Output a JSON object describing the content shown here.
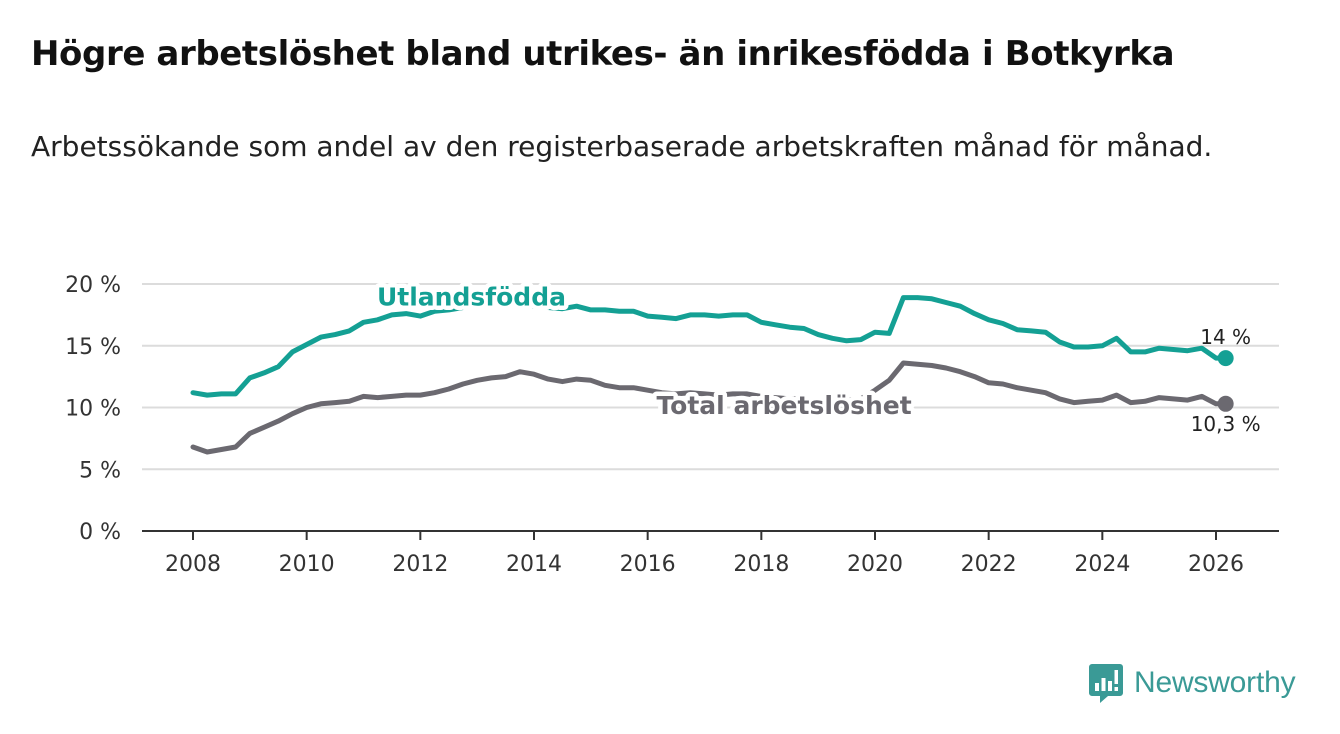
{
  "title": "Högre arbetslöshet bland utrikes- än inrikesfödda i Botkyrka",
  "subtitle": "Arbetssökande som andel av den registerbaserade arbetskraften månad för månad.",
  "brand": {
    "name": "Newsworthy",
    "color": "#3a9a96",
    "icon": "bar-chart-logo-icon"
  },
  "chart_data": {
    "type": "line",
    "title": "Högre arbetslöshet bland utrikes- än inrikesfödda i Botkyrka",
    "xlabel": "",
    "ylabel": "",
    "xlim": [
      2007.6,
      2027.1
    ],
    "ylim": [
      0,
      20
    ],
    "grid": true,
    "x_ticks": [
      2008,
      2010,
      2012,
      2014,
      2016,
      2018,
      2020,
      2022,
      2024,
      2026
    ],
    "x_tick_labels": [
      "2008",
      "2010",
      "2012",
      "2014",
      "2016",
      "2018",
      "2020",
      "2022",
      "2024",
      "2026"
    ],
    "y_ticks": [
      0,
      5,
      10,
      15,
      20
    ],
    "y_tick_labels": [
      "0 %",
      "5 %",
      "10 %",
      "15 %",
      "20 %"
    ],
    "series": [
      {
        "name": "Utlandsfödda",
        "color": "#14a094",
        "end_label": "14 %",
        "x": [
          2008.0,
          2008.25,
          2008.5,
          2008.75,
          2009.0,
          2009.25,
          2009.5,
          2009.75,
          2010.0,
          2010.25,
          2010.5,
          2010.75,
          2011.0,
          2011.25,
          2011.5,
          2011.75,
          2012.0,
          2012.25,
          2012.5,
          2012.75,
          2013.0,
          2013.25,
          2013.5,
          2013.75,
          2014.0,
          2014.25,
          2014.5,
          2014.75,
          2015.0,
          2015.25,
          2015.5,
          2015.75,
          2016.0,
          2016.25,
          2016.5,
          2016.75,
          2017.0,
          2017.25,
          2017.5,
          2017.75,
          2018.0,
          2018.25,
          2018.5,
          2018.75,
          2019.0,
          2019.25,
          2019.5,
          2019.75,
          2020.0,
          2020.25,
          2020.5,
          2020.75,
          2021.0,
          2021.25,
          2021.5,
          2021.75,
          2022.0,
          2022.25,
          2022.5,
          2022.75,
          2023.0,
          2023.25,
          2023.5,
          2023.75,
          2024.0,
          2024.25,
          2024.5,
          2024.75,
          2025.0,
          2025.25,
          2025.5,
          2025.75,
          2026.0,
          2026.17
        ],
        "values": [
          11.2,
          11.0,
          11.1,
          11.1,
          12.4,
          12.8,
          13.3,
          14.5,
          15.1,
          15.7,
          15.9,
          16.2,
          16.9,
          17.1,
          17.5,
          17.6,
          17.4,
          17.8,
          17.9,
          18.1,
          18.3,
          18.4,
          18.4,
          18.3,
          18.2,
          18.1,
          18.0,
          18.2,
          17.9,
          17.9,
          17.8,
          17.8,
          17.4,
          17.3,
          17.2,
          17.5,
          17.5,
          17.4,
          17.5,
          17.5,
          16.9,
          16.7,
          16.5,
          16.4,
          15.9,
          15.6,
          15.4,
          15.5,
          16.1,
          16.0,
          18.9,
          18.9,
          18.8,
          18.5,
          18.2,
          17.6,
          17.1,
          16.8,
          16.3,
          16.2,
          16.1,
          15.3,
          14.9,
          14.9,
          15.0,
          15.6,
          14.5,
          14.5,
          14.8,
          14.7,
          14.6,
          14.8,
          14.0,
          14.0
        ]
      },
      {
        "name": "Total arbetslöshet",
        "color": "#6b6970",
        "end_label": "10,3 %",
        "x": [
          2008.0,
          2008.25,
          2008.5,
          2008.75,
          2009.0,
          2009.25,
          2009.5,
          2009.75,
          2010.0,
          2010.25,
          2010.5,
          2010.75,
          2011.0,
          2011.25,
          2011.5,
          2011.75,
          2012.0,
          2012.25,
          2012.5,
          2012.75,
          2013.0,
          2013.25,
          2013.5,
          2013.75,
          2014.0,
          2014.25,
          2014.5,
          2014.75,
          2015.0,
          2015.25,
          2015.5,
          2015.75,
          2016.0,
          2016.25,
          2016.5,
          2016.75,
          2017.0,
          2017.25,
          2017.5,
          2017.75,
          2018.0,
          2018.25,
          2018.5,
          2018.75,
          2019.0,
          2019.25,
          2019.5,
          2019.75,
          2020.0,
          2020.25,
          2020.5,
          2020.75,
          2021.0,
          2021.25,
          2021.5,
          2021.75,
          2022.0,
          2022.25,
          2022.5,
          2022.75,
          2023.0,
          2023.25,
          2023.5,
          2023.75,
          2024.0,
          2024.25,
          2024.5,
          2024.75,
          2025.0,
          2025.25,
          2025.5,
          2025.75,
          2026.0,
          2026.17
        ],
        "values": [
          6.8,
          6.4,
          6.6,
          6.8,
          7.9,
          8.4,
          8.9,
          9.5,
          10.0,
          10.3,
          10.4,
          10.5,
          10.9,
          10.8,
          10.9,
          11.0,
          11.0,
          11.2,
          11.5,
          11.9,
          12.2,
          12.4,
          12.5,
          12.9,
          12.7,
          12.3,
          12.1,
          12.3,
          12.2,
          11.8,
          11.6,
          11.6,
          11.4,
          11.2,
          11.1,
          11.2,
          11.1,
          11.0,
          11.1,
          11.1,
          10.9,
          10.8,
          10.7,
          10.7,
          10.6,
          10.6,
          10.6,
          10.7,
          11.4,
          12.2,
          13.6,
          13.5,
          13.4,
          13.2,
          12.9,
          12.5,
          12.0,
          11.9,
          11.6,
          11.4,
          11.2,
          10.7,
          10.4,
          10.5,
          10.6,
          11.0,
          10.4,
          10.5,
          10.8,
          10.7,
          10.6,
          10.9,
          10.3,
          10.3
        ]
      }
    ],
    "annotations": [
      {
        "series": "Utlandsfödda",
        "text": "Utlandsfödda",
        "x": 2012.9,
        "y": 19.0
      },
      {
        "series": "Total arbetslöshet",
        "text": "Total arbetslöshet",
        "x": 2018.4,
        "y": 10.2
      }
    ]
  }
}
